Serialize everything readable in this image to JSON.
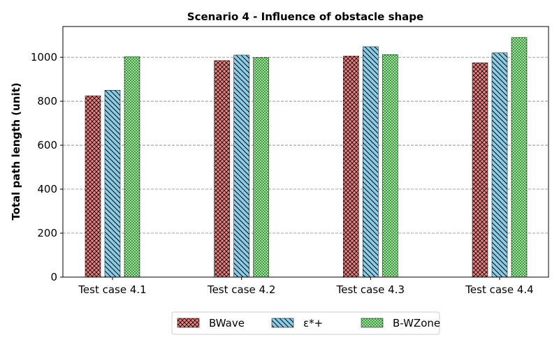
{
  "chart_data": {
    "type": "bar",
    "title": "Scenario 4 - Influence of obstacle shape",
    "xlabel": "",
    "ylabel": "Total path length (unit)",
    "categories": [
      "Test case 4.1",
      "Test case 4.2",
      "Test case 4.3",
      "Test case 4.4"
    ],
    "ylim": [
      0,
      1140
    ],
    "yticks": [
      0,
      200,
      400,
      600,
      800,
      1000
    ],
    "grid": "y-dashed",
    "legend_position": "bottom-center",
    "series": [
      {
        "name": "BWave",
        "values": [
          825,
          985,
          1006,
          975
        ],
        "color": "#f08080",
        "pattern": "crosshatch"
      },
      {
        "name": "ε*+",
        "values": [
          850,
          1010,
          1048,
          1020
        ],
        "color": "#87ceeb",
        "pattern": "backslash"
      },
      {
        "name": "B-WZone",
        "values": [
          1003,
          998,
          1012,
          1090
        ],
        "color": "#90ee90",
        "pattern": "dots"
      }
    ]
  }
}
